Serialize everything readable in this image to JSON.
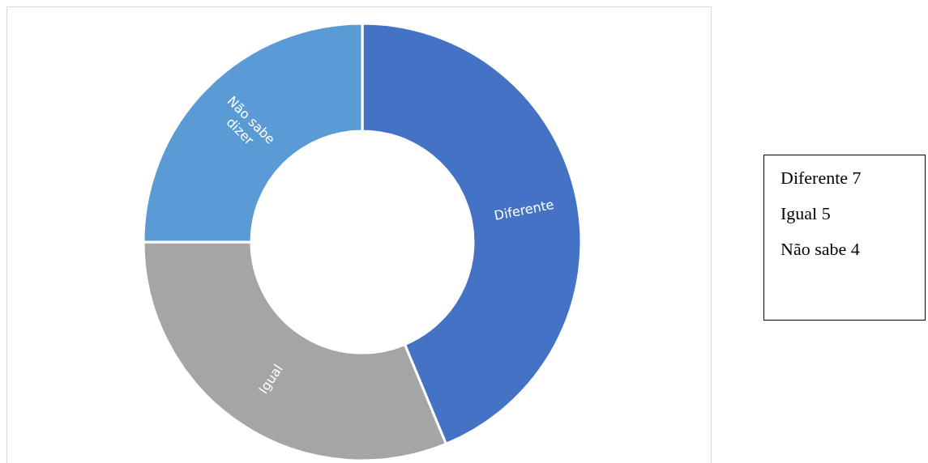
{
  "chart_data": {
    "type": "donut",
    "categories": [
      "Diferente",
      "Igual",
      "Não sabe dizer"
    ],
    "values": [
      43.75,
      31.25,
      25
    ],
    "colors": [
      "#4472c4",
      "#a5a5a5",
      "#5b9bd5"
    ],
    "annotations": [
      "Diferente 7",
      "Igual 5",
      "Não sabe 4"
    ]
  }
}
